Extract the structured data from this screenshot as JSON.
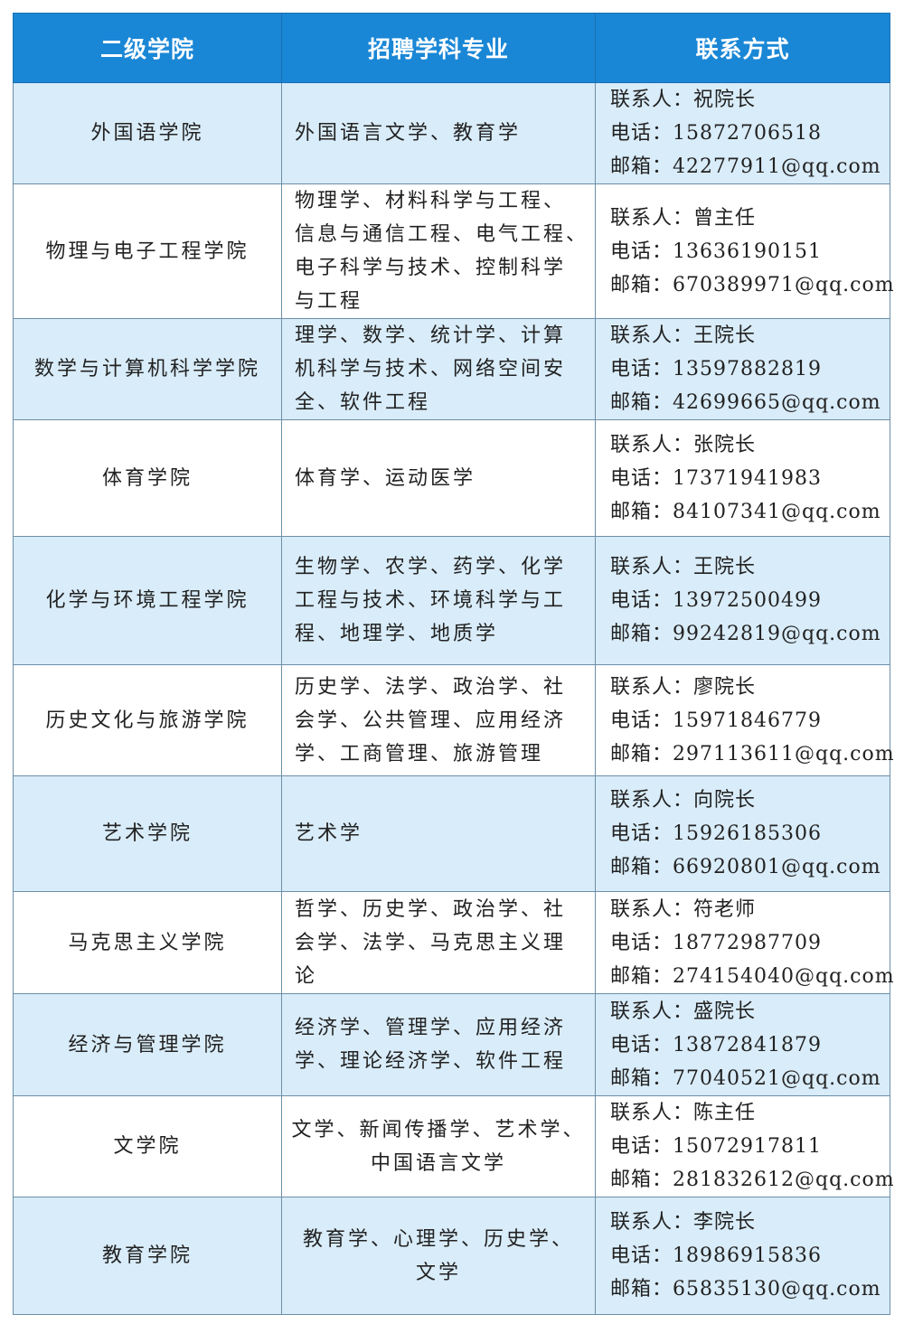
{
  "colors": {
    "header_bg": "#1a87d6",
    "alt_row_bg": "#d9ecf9"
  },
  "headers": [
    "二级学院",
    "招聘学科专业",
    "联系方式"
  ],
  "labels": {
    "contact": "联系人：",
    "phone": "电话：",
    "email": "邮箱："
  },
  "rows": [
    {
      "college": "外国语学院",
      "subjects": [
        "外国语言文学、教育学"
      ],
      "contact": "祝院长",
      "phone": "15872706518",
      "email": "42277911@qq.com"
    },
    {
      "college": "物理与电子工程学院",
      "subjects": [
        "物理学、材料科学与工程、",
        "信息与通信工程、电气工程、",
        "电子科学与技术、控制科学",
        "与工程"
      ],
      "contact": "曾主任",
      "phone": "13636190151",
      "email": "670389971@qq.com"
    },
    {
      "college": "数学与计算机科学学院",
      "subjects": [
        "理学、数学、统计学、计算",
        "机科学与技术、网络空间安",
        "全、软件工程"
      ],
      "contact": "王院长",
      "phone": "13597882819",
      "email": "42699665@qq.com"
    },
    {
      "college": "体育学院",
      "subjects": [
        "体育学、运动医学"
      ],
      "contact": "张院长",
      "phone": "17371941983",
      "email": "84107341@qq.com"
    },
    {
      "college": "化学与环境工程学院",
      "subjects": [
        "生物学、农学、药学、化学",
        "工程与技术、环境科学与工",
        "程、地理学、地质学"
      ],
      "contact": "王院长",
      "phone": "13972500499",
      "email": "99242819@qq.com"
    },
    {
      "college": "历史文化与旅游学院",
      "subjects": [
        "历史学、法学、政治学、社",
        "会学、公共管理、应用经济",
        "学、工商管理、旅游管理"
      ],
      "contact": "廖院长",
      "phone": "15971846779",
      "email": "297113611@qq.com"
    },
    {
      "college": "艺术学院",
      "subjects": [
        "艺术学"
      ],
      "contact": "向院长",
      "phone": "15926185306",
      "email": "66920801@qq.com"
    },
    {
      "college": "马克思主义学院",
      "subjects": [
        "哲学、历史学、政治学、社",
        "会学、法学、马克思主义理",
        "论"
      ],
      "contact": "符老师",
      "phone": "18772987709",
      "email": "274154040@qq.com"
    },
    {
      "college": "经济与管理学院",
      "subjects": [
        "经济学、管理学、应用经济",
        "学、理论经济学、软件工程"
      ],
      "contact": "盛院长",
      "phone": "13872841879",
      "email": "77040521@qq.com"
    },
    {
      "college": "文学院",
      "subjects": [
        "文学、新闻传播学、艺术学、",
        "中国语言文学"
      ],
      "center": true,
      "contact": "陈主任",
      "phone": "15072917811",
      "email": "281832612@qq.com"
    },
    {
      "college": "教育学院",
      "subjects": [
        "教育学、心理学、历史学、",
        "文学"
      ],
      "center": true,
      "contact": "李院长",
      "phone": "18986915836",
      "email": "65835130@qq.com"
    }
  ]
}
